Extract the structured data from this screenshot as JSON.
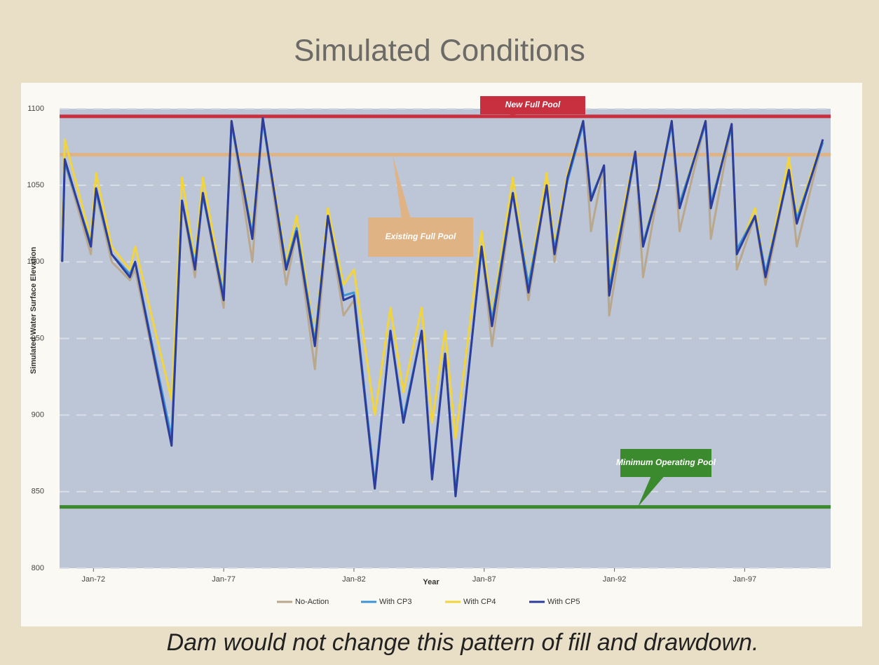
{
  "chart_data": {
    "type": "line",
    "title": "Simulated Conditions",
    "x_label": "Year",
    "y_label": "Simulated Water Surface Elevation",
    "x": [
      1970.8,
      1970.9,
      1971.9,
      1972.1,
      1972.7,
      1973.4,
      1973.6,
      1975.0,
      1975.4,
      1975.9,
      1976.2,
      1977.0,
      1977.3,
      1978.1,
      1978.5,
      1979.4,
      1979.8,
      1980.5,
      1981.0,
      1981.6,
      1982.0,
      1982.8,
      1983.4,
      1983.9,
      1984.6,
      1985.0,
      1985.5,
      1985.9,
      1986.9,
      1987.3,
      1988.1,
      1988.7,
      1989.4,
      1989.7,
      1990.2,
      1990.8,
      1991.1,
      1991.6,
      1991.8,
      1992.8,
      1993.1,
      1993.7,
      1994.2,
      1994.5,
      1995.5,
      1995.7,
      1996.5,
      1996.7,
      1997.4,
      1997.8,
      1998.7,
      1999.0,
      2000.0
    ],
    "series": [
      {
        "name": "No-Action",
        "color": "#b9a88c",
        "values": [
          1000,
          1065,
          1005,
          1045,
          1000,
          988,
          995,
          880,
          1040,
          990,
          1045,
          970,
          1092,
          1000,
          1094,
          985,
          1020,
          930,
          1030,
          965,
          975,
          852,
          955,
          895,
          955,
          858,
          940,
          847,
          1010,
          945,
          1045,
          975,
          1050,
          1000,
          1055,
          1092,
          1020,
          1063,
          965,
          1072,
          990,
          1048,
          1092,
          1020,
          1092,
          1015,
          1090,
          995,
          1030,
          985,
          1060,
          1010,
          1080
        ]
      },
      {
        "name": "With CP3",
        "color": "#3d93d4",
        "values": [
          1000,
          1065,
          1012,
          1046,
          1005,
          992,
          1000,
          885,
          1040,
          998,
          1043,
          978,
          1090,
          1018,
          1092,
          997,
          1022,
          948,
          1030,
          978,
          980,
          855,
          955,
          898,
          955,
          860,
          940,
          850,
          1008,
          962,
          1045,
          985,
          1048,
          1008,
          1053,
          1090,
          1042,
          1062,
          982,
          1070,
          1012,
          1048,
          1090,
          1038,
          1090,
          1038,
          1088,
          1008,
          1030,
          993,
          1058,
          1028,
          1078
        ]
      },
      {
        "name": "With CP4",
        "color": "#f2d43c",
        "values": [
          1010,
          1080,
          1015,
          1058,
          1010,
          995,
          1010,
          910,
          1055,
          1000,
          1055,
          980,
          1092,
          1020,
          1094,
          1000,
          1030,
          950,
          1035,
          985,
          995,
          900,
          970,
          915,
          970,
          895,
          955,
          885,
          1020,
          965,
          1055,
          985,
          1058,
          1010,
          1058,
          1092,
          1040,
          1063,
          990,
          1072,
          1012,
          1050,
          1092,
          1038,
          1092,
          1038,
          1090,
          1005,
          1035,
          992,
          1068,
          1030,
          1080
        ]
      },
      {
        "name": "With CP5",
        "color": "#2c3d9c",
        "values": [
          1000,
          1067,
          1010,
          1048,
          1005,
          990,
          1000,
          880,
          1040,
          995,
          1045,
          975,
          1092,
          1015,
          1094,
          995,
          1020,
          945,
          1030,
          975,
          978,
          852,
          955,
          895,
          955,
          858,
          940,
          847,
          1010,
          958,
          1045,
          980,
          1050,
          1005,
          1055,
          1092,
          1040,
          1063,
          978,
          1072,
          1010,
          1048,
          1092,
          1035,
          1092,
          1035,
          1090,
          1005,
          1030,
          990,
          1060,
          1025,
          1080
        ]
      }
    ],
    "xlim": [
      1970.7,
      2000.3
    ],
    "xticks": [
      {
        "value": 1972,
        "label": "Jan-72"
      },
      {
        "value": 1977,
        "label": "Jan-77"
      },
      {
        "value": 1982,
        "label": "Jan-82"
      },
      {
        "value": 1987,
        "label": "Jan-87"
      },
      {
        "value": 1992,
        "label": "Jan-92"
      },
      {
        "value": 1997,
        "label": "Jan-97"
      }
    ],
    "ylim": [
      800,
      1100
    ],
    "yticks": [
      800,
      850,
      900,
      950,
      1000,
      1050,
      1100
    ],
    "grid": true,
    "legend": "bottom",
    "reference_lines": [
      {
        "label": "New Full Pool",
        "value": 1095,
        "color": "#c8303f"
      },
      {
        "label": "Existing Full Pool",
        "value": 1070,
        "color": "#e0b384"
      },
      {
        "label": "Minimum Operating Pool",
        "value": 840,
        "color": "#3b8a2e"
      }
    ]
  },
  "caption": "Dam would not change this pattern of fill and drawdown."
}
